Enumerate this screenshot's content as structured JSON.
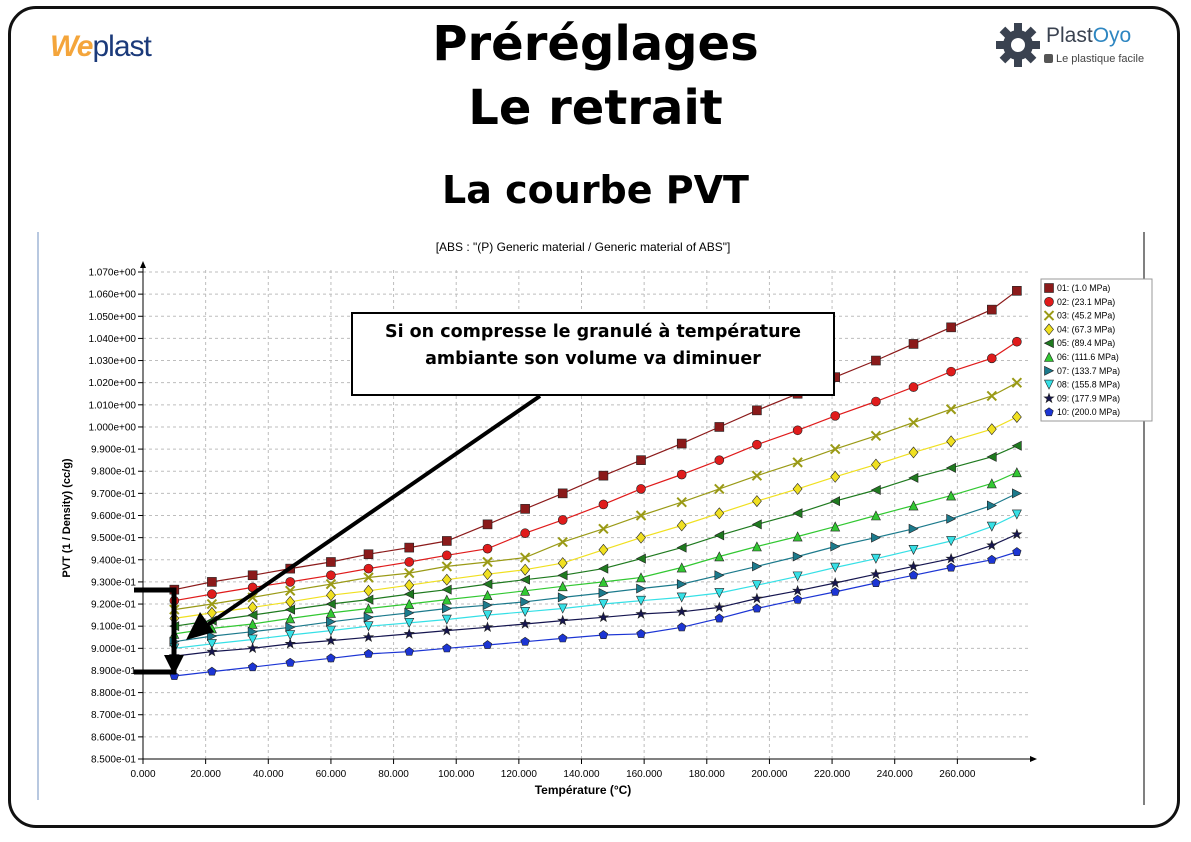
{
  "header": {
    "title_line1": "Préréglages",
    "title_line2": "Le retrait",
    "subtitle": "La courbe PVT",
    "logo_left": {
      "part1": "We",
      "part2": "plast"
    },
    "logo_right": {
      "part1": "Plast",
      "part2": "Oyo",
      "tagline": "Le plastique facile"
    }
  },
  "callout": {
    "line1": "Si on compresse le granulé à température",
    "line2": "ambiante son volume va diminuer"
  },
  "chart_data": {
    "type": "line",
    "title": "[ABS : \"(P)  Generic material / Generic material of ABS\"]",
    "xlabel": "Température (°C)",
    "ylabel": "PVT (1 / Density) (cc/g)",
    "xlim": [
      0,
      280
    ],
    "ylim": [
      0.85,
      1.07
    ],
    "x_ticks": [
      0,
      20,
      40,
      60,
      80,
      100,
      120,
      140,
      160,
      180,
      200,
      220,
      240,
      260
    ],
    "x_tick_labels": [
      "0.000",
      "20.000",
      "40.000",
      "60.000",
      "80.000",
      "100.000",
      "120.000",
      "140.000",
      "160.000",
      "180.000",
      "200.000",
      "220.000",
      "240.000",
      "260.000"
    ],
    "y_ticks": [
      0.85,
      0.86,
      0.87,
      0.88,
      0.89,
      0.9,
      0.91,
      0.92,
      0.93,
      0.94,
      0.95,
      0.96,
      0.97,
      0.98,
      0.99,
      1.0,
      1.01,
      1.02,
      1.03,
      1.04,
      1.05,
      1.06,
      1.07
    ],
    "y_tick_labels": [
      "8.500e-01",
      "8.600e-01",
      "8.700e-01",
      "8.800e-01",
      "8.900e-01",
      "9.000e-01",
      "9.100e-01",
      "9.200e-01",
      "9.300e-01",
      "9.400e-01",
      "9.500e-01",
      "9.600e-01",
      "9.700e-01",
      "9.800e-01",
      "9.900e-01",
      "1.000e+00",
      "1.010e+00",
      "1.020e+00",
      "1.030e+00",
      "1.040e+00",
      "1.050e+00",
      "1.060e+00",
      "1.070e+00"
    ],
    "grid": true,
    "legend_position": "top-right",
    "x": [
      10,
      22,
      35,
      47,
      60,
      72,
      85,
      97,
      110,
      122,
      134,
      147,
      159,
      172,
      184,
      196,
      209,
      221,
      234,
      246,
      258,
      271,
      279
    ],
    "series": [
      {
        "name": "01: (1.0 MPa)",
        "color": "#8b1a1a",
        "marker": "square",
        "values": [
          0.9265,
          0.93,
          0.933,
          0.936,
          0.939,
          0.9425,
          0.9455,
          0.9485,
          0.956,
          0.963,
          0.97,
          0.978,
          0.985,
          0.9925,
          1.0,
          1.0075,
          1.015,
          1.0225,
          1.03,
          1.0375,
          1.045,
          1.053,
          1.0615
        ]
      },
      {
        "name": "02: (23.1 MPa)",
        "color": "#e01b1b",
        "marker": "circle",
        "values": [
          0.9215,
          0.9245,
          0.9275,
          0.93,
          0.933,
          0.936,
          0.939,
          0.942,
          0.945,
          0.952,
          0.958,
          0.965,
          0.972,
          0.9785,
          0.985,
          0.992,
          0.9985,
          1.005,
          1.0115,
          1.018,
          1.025,
          1.031,
          1.0385
        ]
      },
      {
        "name": "03: (45.2 MPa)",
        "color": "#9a9a16",
        "marker": "x",
        "values": [
          0.9175,
          0.92,
          0.923,
          0.926,
          0.929,
          0.932,
          0.934,
          0.937,
          0.939,
          0.941,
          0.948,
          0.954,
          0.96,
          0.966,
          0.972,
          0.978,
          0.984,
          0.99,
          0.996,
          1.002,
          1.008,
          1.014,
          1.02
        ]
      },
      {
        "name": "04: (67.3 MPa)",
        "color": "#f0e020",
        "marker": "diamond",
        "values": [
          0.9135,
          0.916,
          0.9185,
          0.921,
          0.924,
          0.926,
          0.9285,
          0.931,
          0.9335,
          0.9355,
          0.9385,
          0.9445,
          0.95,
          0.9555,
          0.961,
          0.9665,
          0.972,
          0.9775,
          0.983,
          0.9885,
          0.9935,
          0.999,
          1.0045
        ]
      },
      {
        "name": "05: (89.4 MPa)",
        "color": "#1f7a1f",
        "marker": "triangle-left",
        "values": [
          0.91,
          0.9125,
          0.915,
          0.9175,
          0.92,
          0.922,
          0.9245,
          0.9265,
          0.929,
          0.931,
          0.933,
          0.936,
          0.9405,
          0.9455,
          0.951,
          0.956,
          0.961,
          0.9665,
          0.9715,
          0.977,
          0.9815,
          0.9865,
          0.9915
        ]
      },
      {
        "name": "06: (111.6 MPa)",
        "color": "#32c832",
        "marker": "triangle-up",
        "values": [
          0.9065,
          0.909,
          0.911,
          0.9135,
          0.916,
          0.918,
          0.92,
          0.922,
          0.924,
          0.926,
          0.928,
          0.93,
          0.932,
          0.9365,
          0.9415,
          0.946,
          0.9505,
          0.955,
          0.96,
          0.9645,
          0.969,
          0.9745,
          0.9795
        ]
      },
      {
        "name": "07: (133.7 MPa)",
        "color": "#1c7a8c",
        "marker": "triangle-right",
        "values": [
          0.903,
          0.9055,
          0.9075,
          0.9095,
          0.912,
          0.914,
          0.916,
          0.918,
          0.9195,
          0.921,
          0.923,
          0.925,
          0.927,
          0.929,
          0.933,
          0.937,
          0.9415,
          0.946,
          0.95,
          0.954,
          0.9585,
          0.9645,
          0.97
        ]
      },
      {
        "name": "08: (155.8 MPa)",
        "color": "#36e0e6",
        "marker": "triangle-down",
        "values": [
          0.9,
          0.902,
          0.904,
          0.906,
          0.908,
          0.91,
          0.9115,
          0.913,
          0.915,
          0.9165,
          0.918,
          0.92,
          0.9215,
          0.923,
          0.925,
          0.9285,
          0.9325,
          0.9365,
          0.9405,
          0.9445,
          0.9485,
          0.955,
          0.9605
        ]
      },
      {
        "name": "09: (177.9 MPa)",
        "color": "#161650",
        "marker": "star",
        "values": [
          0.8965,
          0.8985,
          0.9,
          0.902,
          0.9035,
          0.905,
          0.9065,
          0.908,
          0.9095,
          0.911,
          0.9125,
          0.914,
          0.9155,
          0.9165,
          0.9185,
          0.9225,
          0.926,
          0.9295,
          0.9335,
          0.937,
          0.9405,
          0.9465,
          0.9515
        ]
      },
      {
        "name": "10: (200.0 MPa)",
        "color": "#1c35d4",
        "marker": "pentagon",
        "values": [
          0.8875,
          0.8895,
          0.8915,
          0.8935,
          0.8955,
          0.8975,
          0.8985,
          0.9,
          0.9015,
          0.903,
          0.9045,
          0.906,
          0.9065,
          0.9095,
          0.9135,
          0.918,
          0.922,
          0.9255,
          0.9295,
          0.933,
          0.9365,
          0.94,
          0.9435
        ]
      }
    ]
  }
}
